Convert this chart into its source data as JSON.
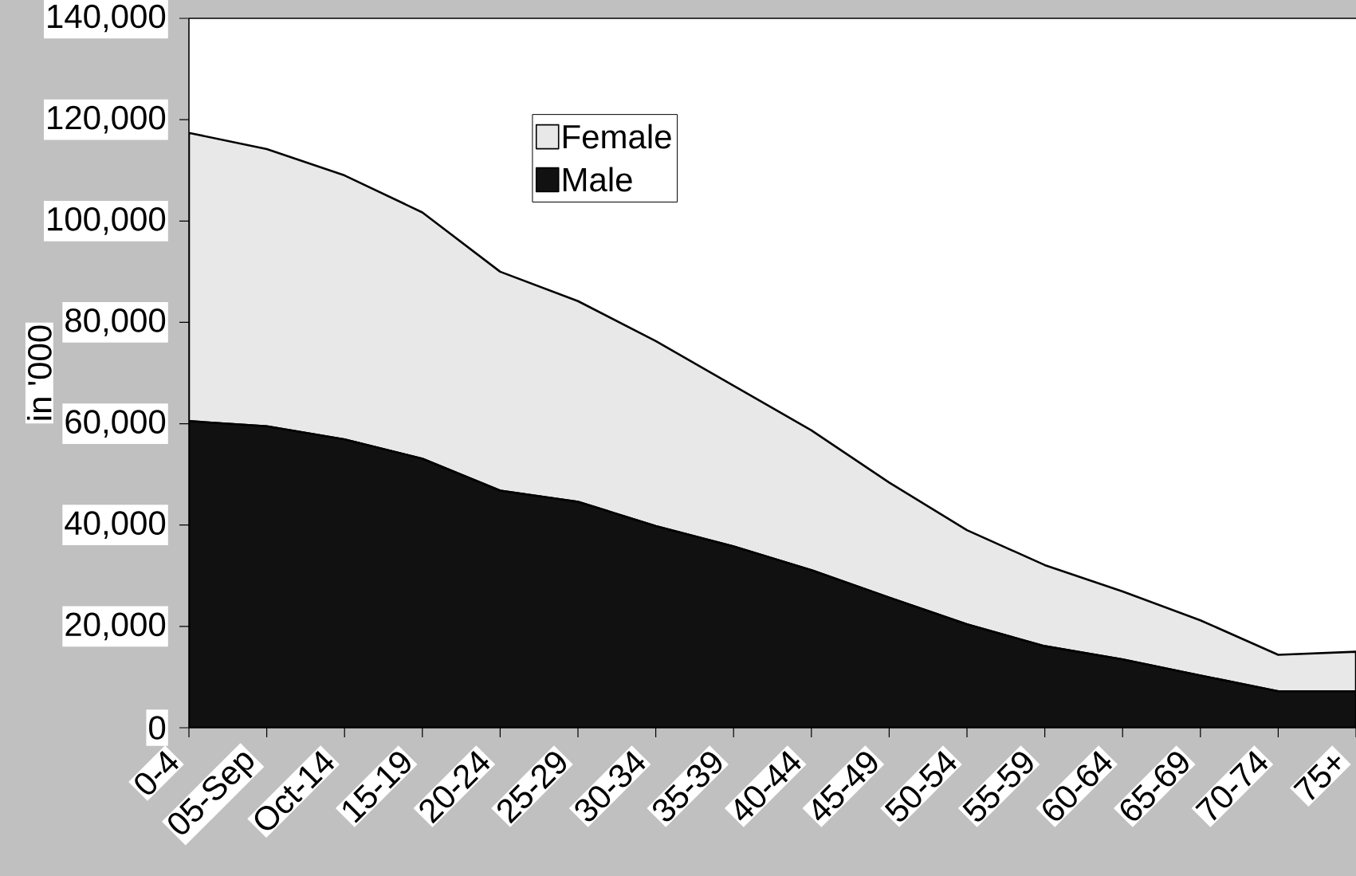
{
  "chart_data": {
    "type": "area",
    "ylabel": "in '000",
    "categories": [
      "0-4",
      "05-Sep",
      "Oct-14",
      "15-19",
      "20-24",
      "25-29",
      "30-34",
      "35-39",
      "40-44",
      "45-49",
      "50-54",
      "55-59",
      "60-64",
      "65-69",
      "70-74",
      "75+"
    ],
    "series": [
      {
        "name": "Male",
        "color": "#111111",
        "values": [
          60500,
          59500,
          56900,
          53100,
          46800,
          44600,
          39800,
          35800,
          31100,
          25700,
          20400,
          16100,
          13500,
          10300,
          7200,
          7200
        ]
      },
      {
        "name": "Female",
        "color": "#e8e8e8",
        "values": [
          56900,
          54700,
          52100,
          48600,
          43200,
          39600,
          36500,
          31700,
          27600,
          22700,
          18600,
          16000,
          13400,
          10900,
          7200,
          7800
        ]
      }
    ],
    "stacked": true,
    "ylim": [
      0,
      140000
    ],
    "yticks": [
      0,
      {
        "value": 20000,
        "label": "20,000"
      },
      {
        "value": 40000,
        "label": "40,000"
      },
      {
        "value": 60000,
        "label": "60,000"
      },
      {
        "value": 80000,
        "label": "80,000"
      },
      {
        "value": 100000,
        "label": "100,000"
      },
      {
        "value": 120000,
        "label": "120,000"
      },
      {
        "value": 140000,
        "label": "140,000"
      }
    ],
    "legend": "top left"
  }
}
